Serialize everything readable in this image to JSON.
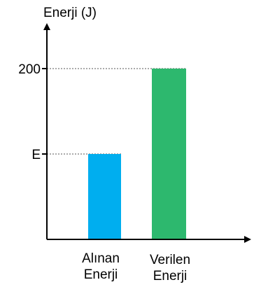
{
  "chart_data": {
    "type": "bar",
    "ylabel": "Enerji (J)",
    "categories": [
      [
        "Alınan",
        "Enerji"
      ],
      [
        "Verilen",
        "Enerji"
      ]
    ],
    "values": [
      100,
      200
    ],
    "ylim": [
      0,
      260
    ],
    "yticks": [
      {
        "value": 100,
        "label": "E"
      },
      {
        "value": 200,
        "label": "200"
      }
    ],
    "bar_colors": [
      "#00aeef",
      "#2db86e"
    ],
    "guide_lines": "dotted from y-axis to bar tops",
    "grid": false,
    "legend": "none"
  }
}
